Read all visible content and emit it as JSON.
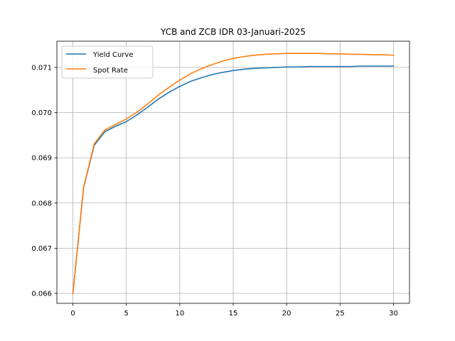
{
  "chart_data": {
    "type": "line",
    "title": "YCB and ZCB IDR 03-Januari-2025",
    "xlabel": "",
    "ylabel": "",
    "xlim": [
      -1.5,
      31.5
    ],
    "ylim": [
      0.06578,
      0.07158
    ],
    "xticks": [
      0,
      5,
      10,
      15,
      20,
      25,
      30
    ],
    "yticks": [
      0.066,
      0.067,
      0.068,
      0.069,
      0.07,
      0.071
    ],
    "ytick_labels": [
      "0.066",
      "0.067",
      "0.068",
      "0.069",
      "0.070",
      "0.071"
    ],
    "grid": true,
    "legend_position": "top-left",
    "series": [
      {
        "name": "Yield Curve",
        "color": "#1f77b4",
        "x": [
          0,
          1,
          2,
          3,
          4,
          5,
          6,
          7,
          8,
          9,
          10,
          11,
          12,
          13,
          14,
          15,
          16,
          17,
          18,
          19,
          20,
          21,
          22,
          23,
          24,
          25,
          26,
          27,
          28,
          29,
          30
        ],
        "y": [
          0.066,
          0.06834,
          0.06928,
          0.06958,
          0.0697,
          0.0698,
          0.06995,
          0.07012,
          0.0703,
          0.07045,
          0.07058,
          0.07069,
          0.07077,
          0.07084,
          0.07089,
          0.07093,
          0.07096,
          0.07098,
          0.07099,
          0.071,
          0.07101,
          0.07101,
          0.07102,
          0.07102,
          0.07102,
          0.07102,
          0.07102,
          0.07103,
          0.07103,
          0.07103,
          0.07103
        ]
      },
      {
        "name": "Spot Rate",
        "color": "#ff7f0e",
        "x": [
          0,
          1,
          2,
          3,
          4,
          5,
          6,
          7,
          8,
          9,
          10,
          11,
          12,
          13,
          14,
          15,
          16,
          17,
          18,
          19,
          20,
          21,
          22,
          23,
          24,
          25,
          26,
          27,
          28,
          29,
          30
        ],
        "y": [
          0.066,
          0.06835,
          0.06931,
          0.06962,
          0.06974,
          0.06986,
          0.07001,
          0.07019,
          0.07039,
          0.07056,
          0.07072,
          0.07086,
          0.07097,
          0.07106,
          0.07114,
          0.0712,
          0.07124,
          0.07127,
          0.07129,
          0.0713,
          0.07131,
          0.07131,
          0.07131,
          0.07131,
          0.0713,
          0.0713,
          0.07129,
          0.07129,
          0.07128,
          0.07128,
          0.07127
        ]
      }
    ]
  }
}
